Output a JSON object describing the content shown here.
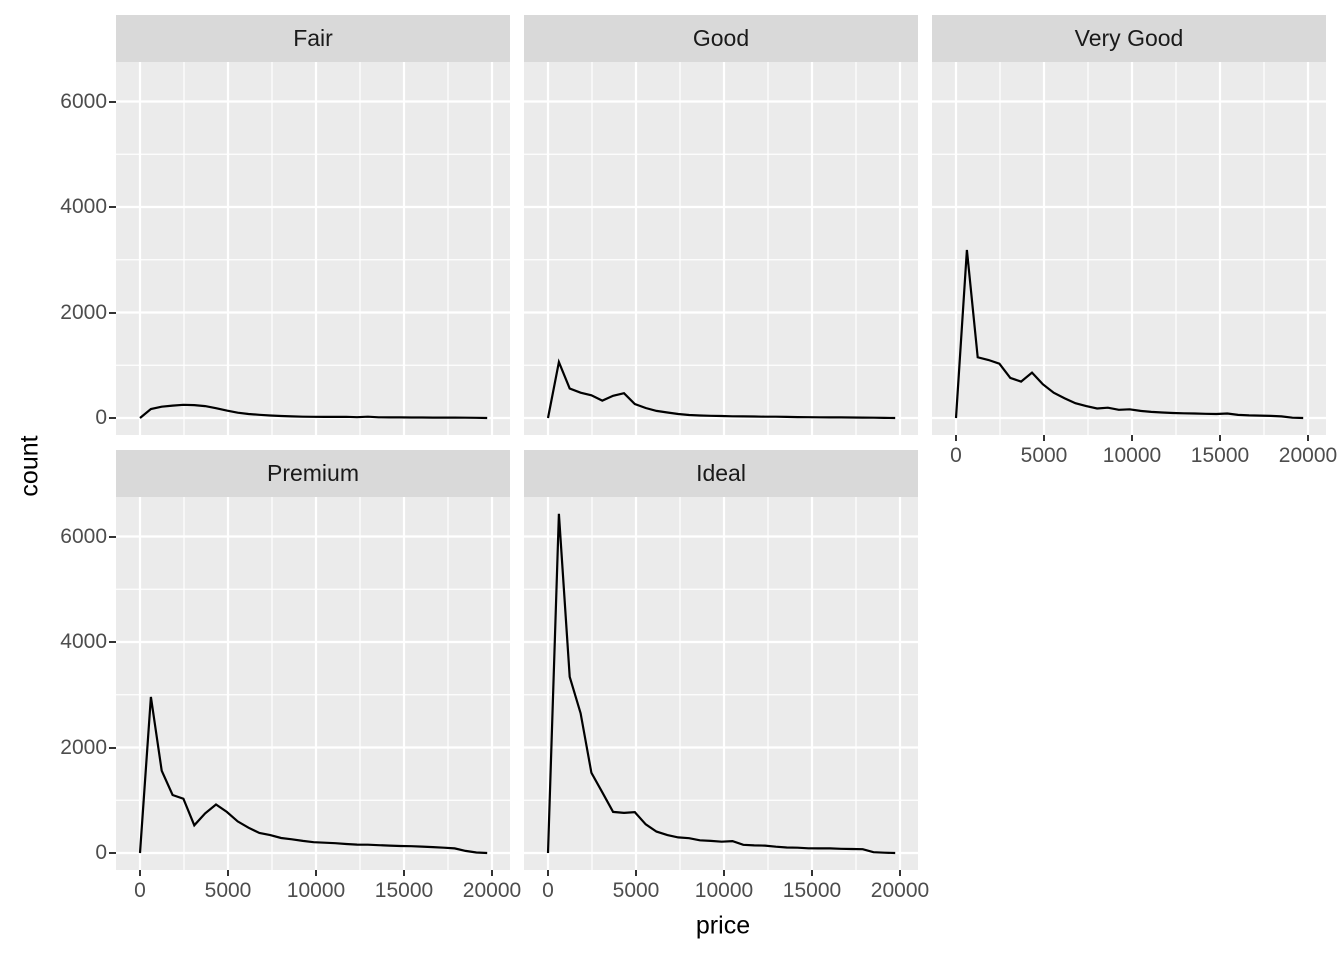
{
  "chart_data": {
    "type": "line",
    "title": "",
    "xlabel": "price",
    "ylabel": "count",
    "geom": "frequency-polygon",
    "legend_position": "none",
    "grid": true,
    "x_ticks": [
      0,
      5000,
      10000,
      15000,
      20000
    ],
    "x_minor_gridlines": [
      2500,
      7500,
      12500,
      17500
    ],
    "y_ticks": [
      0,
      2000,
      4000,
      6000
    ],
    "y_minor_gridlines": [
      1000,
      3000,
      5000
    ],
    "xlim": [
      -1364,
      21023
    ],
    "ylim": [
      -322,
      6749
    ],
    "colors": {
      "line": "#000000",
      "panel_background": "#EBEBEB",
      "strip_background": "#D9D9D9",
      "strip_text": "#1A1A1A",
      "gridline": "#FFFFFF",
      "axis_text": "#4D4D4D",
      "axis_title": "#000000",
      "tick_mark": "#333333"
    },
    "x": [
      0,
      617,
      1233,
      1850,
      2466,
      3083,
      3699,
      4316,
      4933,
      5549,
      6166,
      6782,
      7399,
      8015,
      8632,
      9249,
      9865,
      10482,
      11098,
      11715,
      12331,
      12948,
      13565,
      14181,
      14798,
      15414,
      16031,
      16647,
      17264,
      17881,
      18497,
      19114,
      19730
    ],
    "facets": [
      {
        "label": "Fair",
        "values": [
          0,
          170,
          215,
          235,
          250,
          245,
          225,
          185,
          140,
          100,
          75,
          60,
          48,
          38,
          30,
          25,
          22,
          20,
          20,
          22,
          16,
          24,
          14,
          12,
          12,
          10,
          10,
          8,
          8,
          8,
          6,
          3,
          0
        ]
      },
      {
        "label": "Good",
        "values": [
          0,
          1060,
          560,
          480,
          430,
          330,
          420,
          470,
          265,
          190,
          135,
          105,
          75,
          57,
          48,
          42,
          38,
          33,
          30,
          28,
          25,
          24,
          21,
          18,
          16,
          14,
          12,
          11,
          10,
          8,
          6,
          2,
          0
        ]
      },
      {
        "label": "Very Good",
        "values": [
          0,
          3185,
          1150,
          1100,
          1030,
          760,
          690,
          860,
          640,
          480,
          375,
          280,
          225,
          180,
          195,
          155,
          165,
          135,
          115,
          105,
          95,
          90,
          85,
          80,
          76,
          85,
          58,
          50,
          45,
          40,
          30,
          5,
          0
        ]
      },
      {
        "label": "Premium",
        "values": [
          0,
          2960,
          1560,
          1100,
          1030,
          525,
          750,
          920,
          780,
          600,
          480,
          380,
          340,
          285,
          260,
          230,
          205,
          195,
          185,
          170,
          160,
          158,
          148,
          140,
          132,
          128,
          122,
          112,
          100,
          88,
          40,
          10,
          0
        ]
      },
      {
        "label": "Ideal",
        "values": [
          0,
          6430,
          3340,
          2650,
          1520,
          1150,
          780,
          760,
          775,
          545,
          405,
          340,
          295,
          280,
          240,
          230,
          215,
          225,
          155,
          145,
          140,
          120,
          105,
          100,
          90,
          88,
          88,
          80,
          75,
          72,
          15,
          5,
          0
        ]
      }
    ]
  }
}
